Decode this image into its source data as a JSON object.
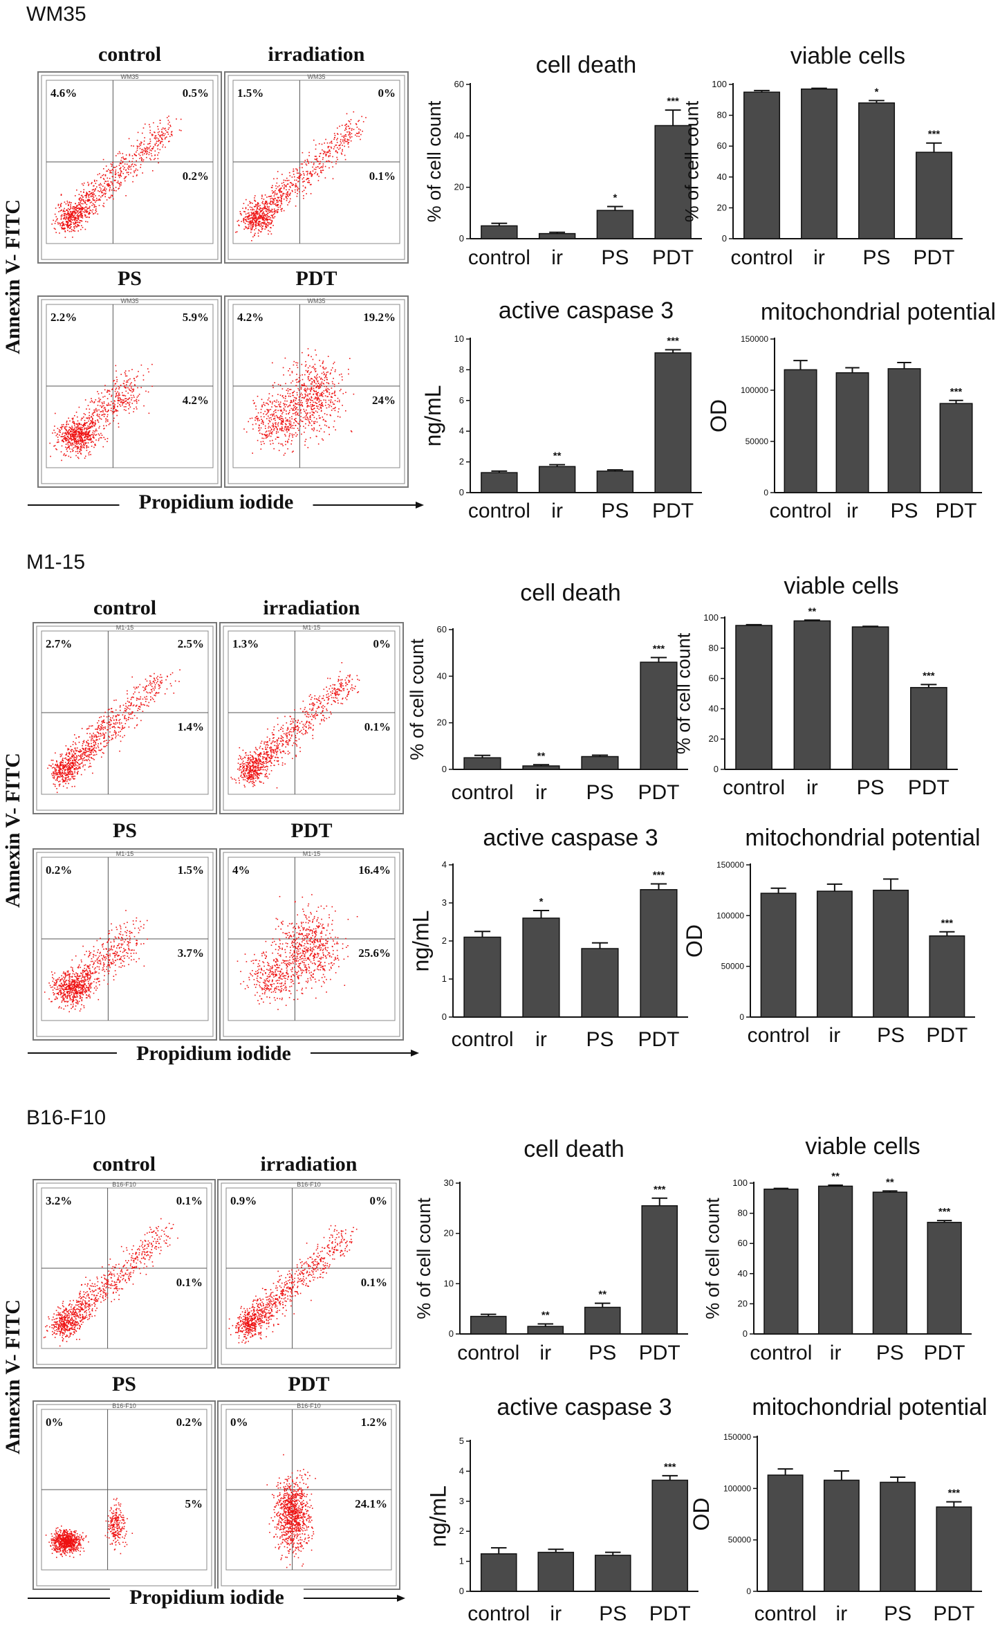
{
  "figure": {
    "colors": {
      "bar": "#4a4a4a",
      "bar_stroke": "#111111",
      "dots": "#ee1111",
      "axis": "#111111",
      "text": "#111111"
    },
    "flow_axes": {
      "y_label": "Annexin V- FITC",
      "x_label": "Propidium iodide"
    },
    "groups": [
      {
        "cell_line": "WM35",
        "flow": {
          "panel_tag": "WM35",
          "panels": [
            {
              "title": "control",
              "quadrants": {
                "UL": "4.6%",
                "UR": "0.5%",
                "LR": "0.2%"
              },
              "pattern": "diag"
            },
            {
              "title": "irradiation",
              "quadrants": {
                "UL": "1.5%",
                "UR": "0%",
                "LR": "0.1%"
              },
              "pattern": "diag"
            },
            {
              "title": "PS",
              "quadrants": {
                "UL": "2.2%",
                "UR": "5.9%",
                "LR": "4.2%"
              },
              "pattern": "spread"
            },
            {
              "title": "PDT",
              "quadrants": {
                "UL": "4.2%",
                "UR": "19.2%",
                "LR": "24%"
              },
              "pattern": "spread2"
            }
          ]
        },
        "charts": [
          {
            "type": "bar",
            "title": "cell death",
            "ylabel": "% of cell count",
            "categories": [
              "control",
              "ir",
              "PS",
              "PDT"
            ],
            "values": [
              5,
              2,
              11,
              44
            ],
            "errors": [
              1,
              0.5,
              1.5,
              6
            ],
            "stars": [
              "",
              "",
              "*",
              "***"
            ],
            "ylim": [
              0,
              60
            ],
            "yticks": [
              "0",
              "20",
              "40",
              "60"
            ],
            "ylabel_size": "medium"
          },
          {
            "type": "bar",
            "title": "viable cells",
            "ylabel": "% of cell count",
            "categories": [
              "control",
              "ir",
              "PS",
              "PDT"
            ],
            "values": [
              95,
              97,
              88,
              56
            ],
            "errors": [
              1,
              0.5,
              1.5,
              6
            ],
            "stars": [
              "",
              "",
              "*",
              "***"
            ],
            "ylim": [
              0,
              100
            ],
            "yticks": [
              "0",
              "20",
              "40",
              "60",
              "80",
              "100"
            ],
            "ylabel_size": "medium"
          },
          {
            "type": "bar",
            "title": "active caspase 3",
            "ylabel": "ng/mL",
            "categories": [
              "control",
              "ir",
              "PS",
              "PDT"
            ],
            "values": [
              1.3,
              1.7,
              1.4,
              9.1
            ],
            "errors": [
              0.1,
              0.12,
              0.08,
              0.2
            ],
            "stars": [
              "",
              "**",
              "",
              "***"
            ],
            "ylim": [
              0,
              10
            ],
            "yticks": [
              "0",
              "2",
              "4",
              "6",
              "8",
              "10"
            ],
            "ylabel_size": "large"
          },
          {
            "type": "bar",
            "title": "mitochondrial potential",
            "ylabel": "OD",
            "categories": [
              "control",
              "ir",
              "PS",
              "PDT"
            ],
            "values": [
              120000,
              117000,
              121000,
              87000
            ],
            "errors": [
              9000,
              5000,
              6000,
              3000
            ],
            "stars": [
              "",
              "",
              "",
              "***"
            ],
            "ylim": [
              0,
              150000
            ],
            "yticks": [
              "0",
              "50000",
              "100000",
              "150000"
            ],
            "ylabel_size": "large"
          }
        ]
      },
      {
        "cell_line": "M1-15",
        "flow": {
          "panel_tag": "M1-15",
          "panels": [
            {
              "title": "control",
              "quadrants": {
                "UL": "2.7%",
                "UR": "2.5%",
                "LR": "1.4%"
              },
              "pattern": "diag"
            },
            {
              "title": "irradiation",
              "quadrants": {
                "UL": "1.3%",
                "UR": "0%",
                "LR": "0.1%"
              },
              "pattern": "diag"
            },
            {
              "title": "PS",
              "quadrants": {
                "UL": "0.2%",
                "UR": "1.5%",
                "LR": "3.7%"
              },
              "pattern": "spread"
            },
            {
              "title": "PDT",
              "quadrants": {
                "UL": "4%",
                "UR": "16.4%",
                "LR": "25.6%"
              },
              "pattern": "spread2"
            }
          ]
        },
        "charts": [
          {
            "type": "bar",
            "title": "cell death",
            "ylabel": "% of cell count",
            "categories": [
              "control",
              "ir",
              "PS",
              "PDT"
            ],
            "values": [
              5,
              1.5,
              5.5,
              46
            ],
            "errors": [
              1,
              0.5,
              0.6,
              2
            ],
            "stars": [
              "",
              "**",
              "",
              "***"
            ],
            "ylim": [
              0,
              60
            ],
            "yticks": [
              "0",
              "20",
              "40",
              "60"
            ],
            "ylabel_size": "medium"
          },
          {
            "type": "bar",
            "title": "viable cells",
            "ylabel": "% of cell count",
            "categories": [
              "control",
              "ir",
              "PS",
              "PDT"
            ],
            "values": [
              95,
              98,
              94,
              54
            ],
            "errors": [
              0.5,
              0.5,
              0.4,
              2
            ],
            "stars": [
              "",
              "**",
              "",
              "***"
            ],
            "ylim": [
              0,
              100
            ],
            "yticks": [
              "0",
              "20",
              "40",
              "60",
              "80",
              "100"
            ],
            "ylabel_size": "medium"
          },
          {
            "type": "bar",
            "title": "active caspase 3",
            "ylabel": "ng/mL",
            "categories": [
              "control",
              "ir",
              "PS",
              "PDT"
            ],
            "values": [
              2.1,
              2.6,
              1.8,
              3.35
            ],
            "errors": [
              0.15,
              0.2,
              0.15,
              0.15
            ],
            "stars": [
              "",
              "*",
              "",
              "***"
            ],
            "ylim": [
              0,
              4
            ],
            "yticks": [
              "0",
              "1",
              "2",
              "3",
              "4"
            ],
            "ylabel_size": "large"
          },
          {
            "type": "bar",
            "title": "mitochondrial potential",
            "ylabel": "OD",
            "categories": [
              "control",
              "ir",
              "PS",
              "PDT"
            ],
            "values": [
              122000,
              124000,
              125000,
              80000
            ],
            "errors": [
              5000,
              7000,
              11000,
              4000
            ],
            "stars": [
              "",
              "",
              "",
              "***"
            ],
            "ylim": [
              0,
              150000
            ],
            "yticks": [
              "0",
              "50000",
              "100000",
              "150000"
            ],
            "ylabel_size": "large"
          }
        ]
      },
      {
        "cell_line": "B16-F10",
        "flow": {
          "panel_tag": "B16-F10",
          "panels": [
            {
              "title": "control",
              "quadrants": {
                "UL": "3.2%",
                "UR": "0.1%",
                "LR": "0.1%"
              },
              "pattern": "diag"
            },
            {
              "title": "irradiation",
              "quadrants": {
                "UL": "0.9%",
                "UR": "0%",
                "LR": "0.1%"
              },
              "pattern": "diag"
            },
            {
              "title": "PS",
              "quadrants": {
                "UL": "0%",
                "UR": "0.2%",
                "LR": "5%"
              },
              "pattern": "split"
            },
            {
              "title": "PDT",
              "quadrants": {
                "UL": "0%",
                "UR": "1.2%",
                "LR": "24.1%"
              },
              "pattern": "column"
            }
          ]
        },
        "charts": [
          {
            "type": "bar",
            "title": "cell death",
            "ylabel": "% of cell count",
            "categories": [
              "control",
              "ir",
              "PS",
              "PDT"
            ],
            "values": [
              3.5,
              1.5,
              5.3,
              25.5
            ],
            "errors": [
              0.4,
              0.5,
              0.8,
              1.5
            ],
            "stars": [
              "",
              "**",
              "**",
              "***"
            ],
            "ylim": [
              0,
              30
            ],
            "yticks": [
              "0",
              "10",
              "20",
              "30"
            ],
            "ylabel_size": "medium"
          },
          {
            "type": "bar",
            "title": "viable cells",
            "ylabel": "% of cell count",
            "categories": [
              "control",
              "ir",
              "PS",
              "PDT"
            ],
            "values": [
              96,
              98,
              94,
              74
            ],
            "errors": [
              0.5,
              0.6,
              0.8,
              1.2
            ],
            "stars": [
              "",
              "**",
              "**",
              "***"
            ],
            "ylim": [
              0,
              100
            ],
            "yticks": [
              "0",
              "20",
              "40",
              "60",
              "80",
              "100"
            ],
            "ylabel_size": "medium"
          },
          {
            "type": "bar",
            "title": "active caspase 3",
            "ylabel": "ng/mL",
            "categories": [
              "control",
              "ir",
              "PS",
              "PDT"
            ],
            "values": [
              1.25,
              1.3,
              1.2,
              3.7
            ],
            "errors": [
              0.2,
              0.1,
              0.1,
              0.15
            ],
            "stars": [
              "",
              "",
              "",
              "***"
            ],
            "ylim": [
              0,
              5
            ],
            "yticks": [
              "0",
              "1",
              "2",
              "3",
              "4",
              "5"
            ],
            "ylabel_size": "large"
          },
          {
            "type": "bar",
            "title": "mitochondrial potential",
            "ylabel": "OD",
            "categories": [
              "control",
              "ir",
              "PS",
              "PDT"
            ],
            "values": [
              113000,
              108000,
              106000,
              82000
            ],
            "errors": [
              6000,
              9000,
              5000,
              5000
            ],
            "stars": [
              "",
              "",
              "",
              "***"
            ],
            "ylim": [
              0,
              150000
            ],
            "yticks": [
              "0",
              "50000",
              "100000",
              "150000"
            ],
            "ylabel_size": "large"
          }
        ]
      }
    ]
  },
  "chart_data": [
    {
      "type": "bar",
      "group": "WM35",
      "title": "cell death",
      "ylabel": "% of cell count",
      "categories": [
        "control",
        "ir",
        "PS",
        "PDT"
      ],
      "values": [
        5,
        2,
        11,
        44
      ],
      "ylim": [
        0,
        60
      ]
    },
    {
      "type": "bar",
      "group": "WM35",
      "title": "viable cells",
      "ylabel": "% of cell count",
      "categories": [
        "control",
        "ir",
        "PS",
        "PDT"
      ],
      "values": [
        95,
        97,
        88,
        56
      ],
      "ylim": [
        0,
        100
      ]
    },
    {
      "type": "bar",
      "group": "WM35",
      "title": "active caspase 3",
      "ylabel": "ng/mL",
      "categories": [
        "control",
        "ir",
        "PS",
        "PDT"
      ],
      "values": [
        1.3,
        1.7,
        1.4,
        9.1
      ],
      "ylim": [
        0,
        10
      ]
    },
    {
      "type": "bar",
      "group": "WM35",
      "title": "mitochondrial potential",
      "ylabel": "OD",
      "categories": [
        "control",
        "ir",
        "PS",
        "PDT"
      ],
      "values": [
        120000,
        117000,
        121000,
        87000
      ],
      "ylim": [
        0,
        150000
      ]
    },
    {
      "type": "bar",
      "group": "M1-15",
      "title": "cell death",
      "ylabel": "% of cell count",
      "categories": [
        "control",
        "ir",
        "PS",
        "PDT"
      ],
      "values": [
        5,
        1.5,
        5.5,
        46
      ],
      "ylim": [
        0,
        60
      ]
    },
    {
      "type": "bar",
      "group": "M1-15",
      "title": "viable cells",
      "ylabel": "% of cell count",
      "categories": [
        "control",
        "ir",
        "PS",
        "PDT"
      ],
      "values": [
        95,
        98,
        94,
        54
      ],
      "ylim": [
        0,
        100
      ]
    },
    {
      "type": "bar",
      "group": "M1-15",
      "title": "active caspase 3",
      "ylabel": "ng/mL",
      "categories": [
        "control",
        "ir",
        "PS",
        "PDT"
      ],
      "values": [
        2.1,
        2.6,
        1.8,
        3.35
      ],
      "ylim": [
        0,
        4
      ]
    },
    {
      "type": "bar",
      "group": "M1-15",
      "title": "mitochondrial potential",
      "ylabel": "OD",
      "categories": [
        "control",
        "ir",
        "PS",
        "PDT"
      ],
      "values": [
        122000,
        124000,
        125000,
        80000
      ],
      "ylim": [
        0,
        150000
      ]
    },
    {
      "type": "bar",
      "group": "B16-F10",
      "title": "cell death",
      "ylabel": "% of cell count",
      "categories": [
        "control",
        "ir",
        "PS",
        "PDT"
      ],
      "values": [
        3.5,
        1.5,
        5.3,
        25.5
      ],
      "ylim": [
        0,
        30
      ]
    },
    {
      "type": "bar",
      "group": "B16-F10",
      "title": "viable cells",
      "ylabel": "% of cell count",
      "categories": [
        "control",
        "ir",
        "PS",
        "PDT"
      ],
      "values": [
        96,
        98,
        94,
        74
      ],
      "ylim": [
        0,
        100
      ]
    },
    {
      "type": "bar",
      "group": "B16-F10",
      "title": "active caspase 3",
      "ylabel": "ng/mL",
      "categories": [
        "control",
        "ir",
        "PS",
        "PDT"
      ],
      "values": [
        1.25,
        1.3,
        1.2,
        3.7
      ],
      "ylim": [
        0,
        5
      ]
    },
    {
      "type": "bar",
      "group": "B16-F10",
      "title": "mitochondrial potential",
      "ylabel": "OD",
      "categories": [
        "control",
        "ir",
        "PS",
        "PDT"
      ],
      "values": [
        113000,
        108000,
        106000,
        82000
      ],
      "ylim": [
        0,
        150000
      ]
    }
  ]
}
